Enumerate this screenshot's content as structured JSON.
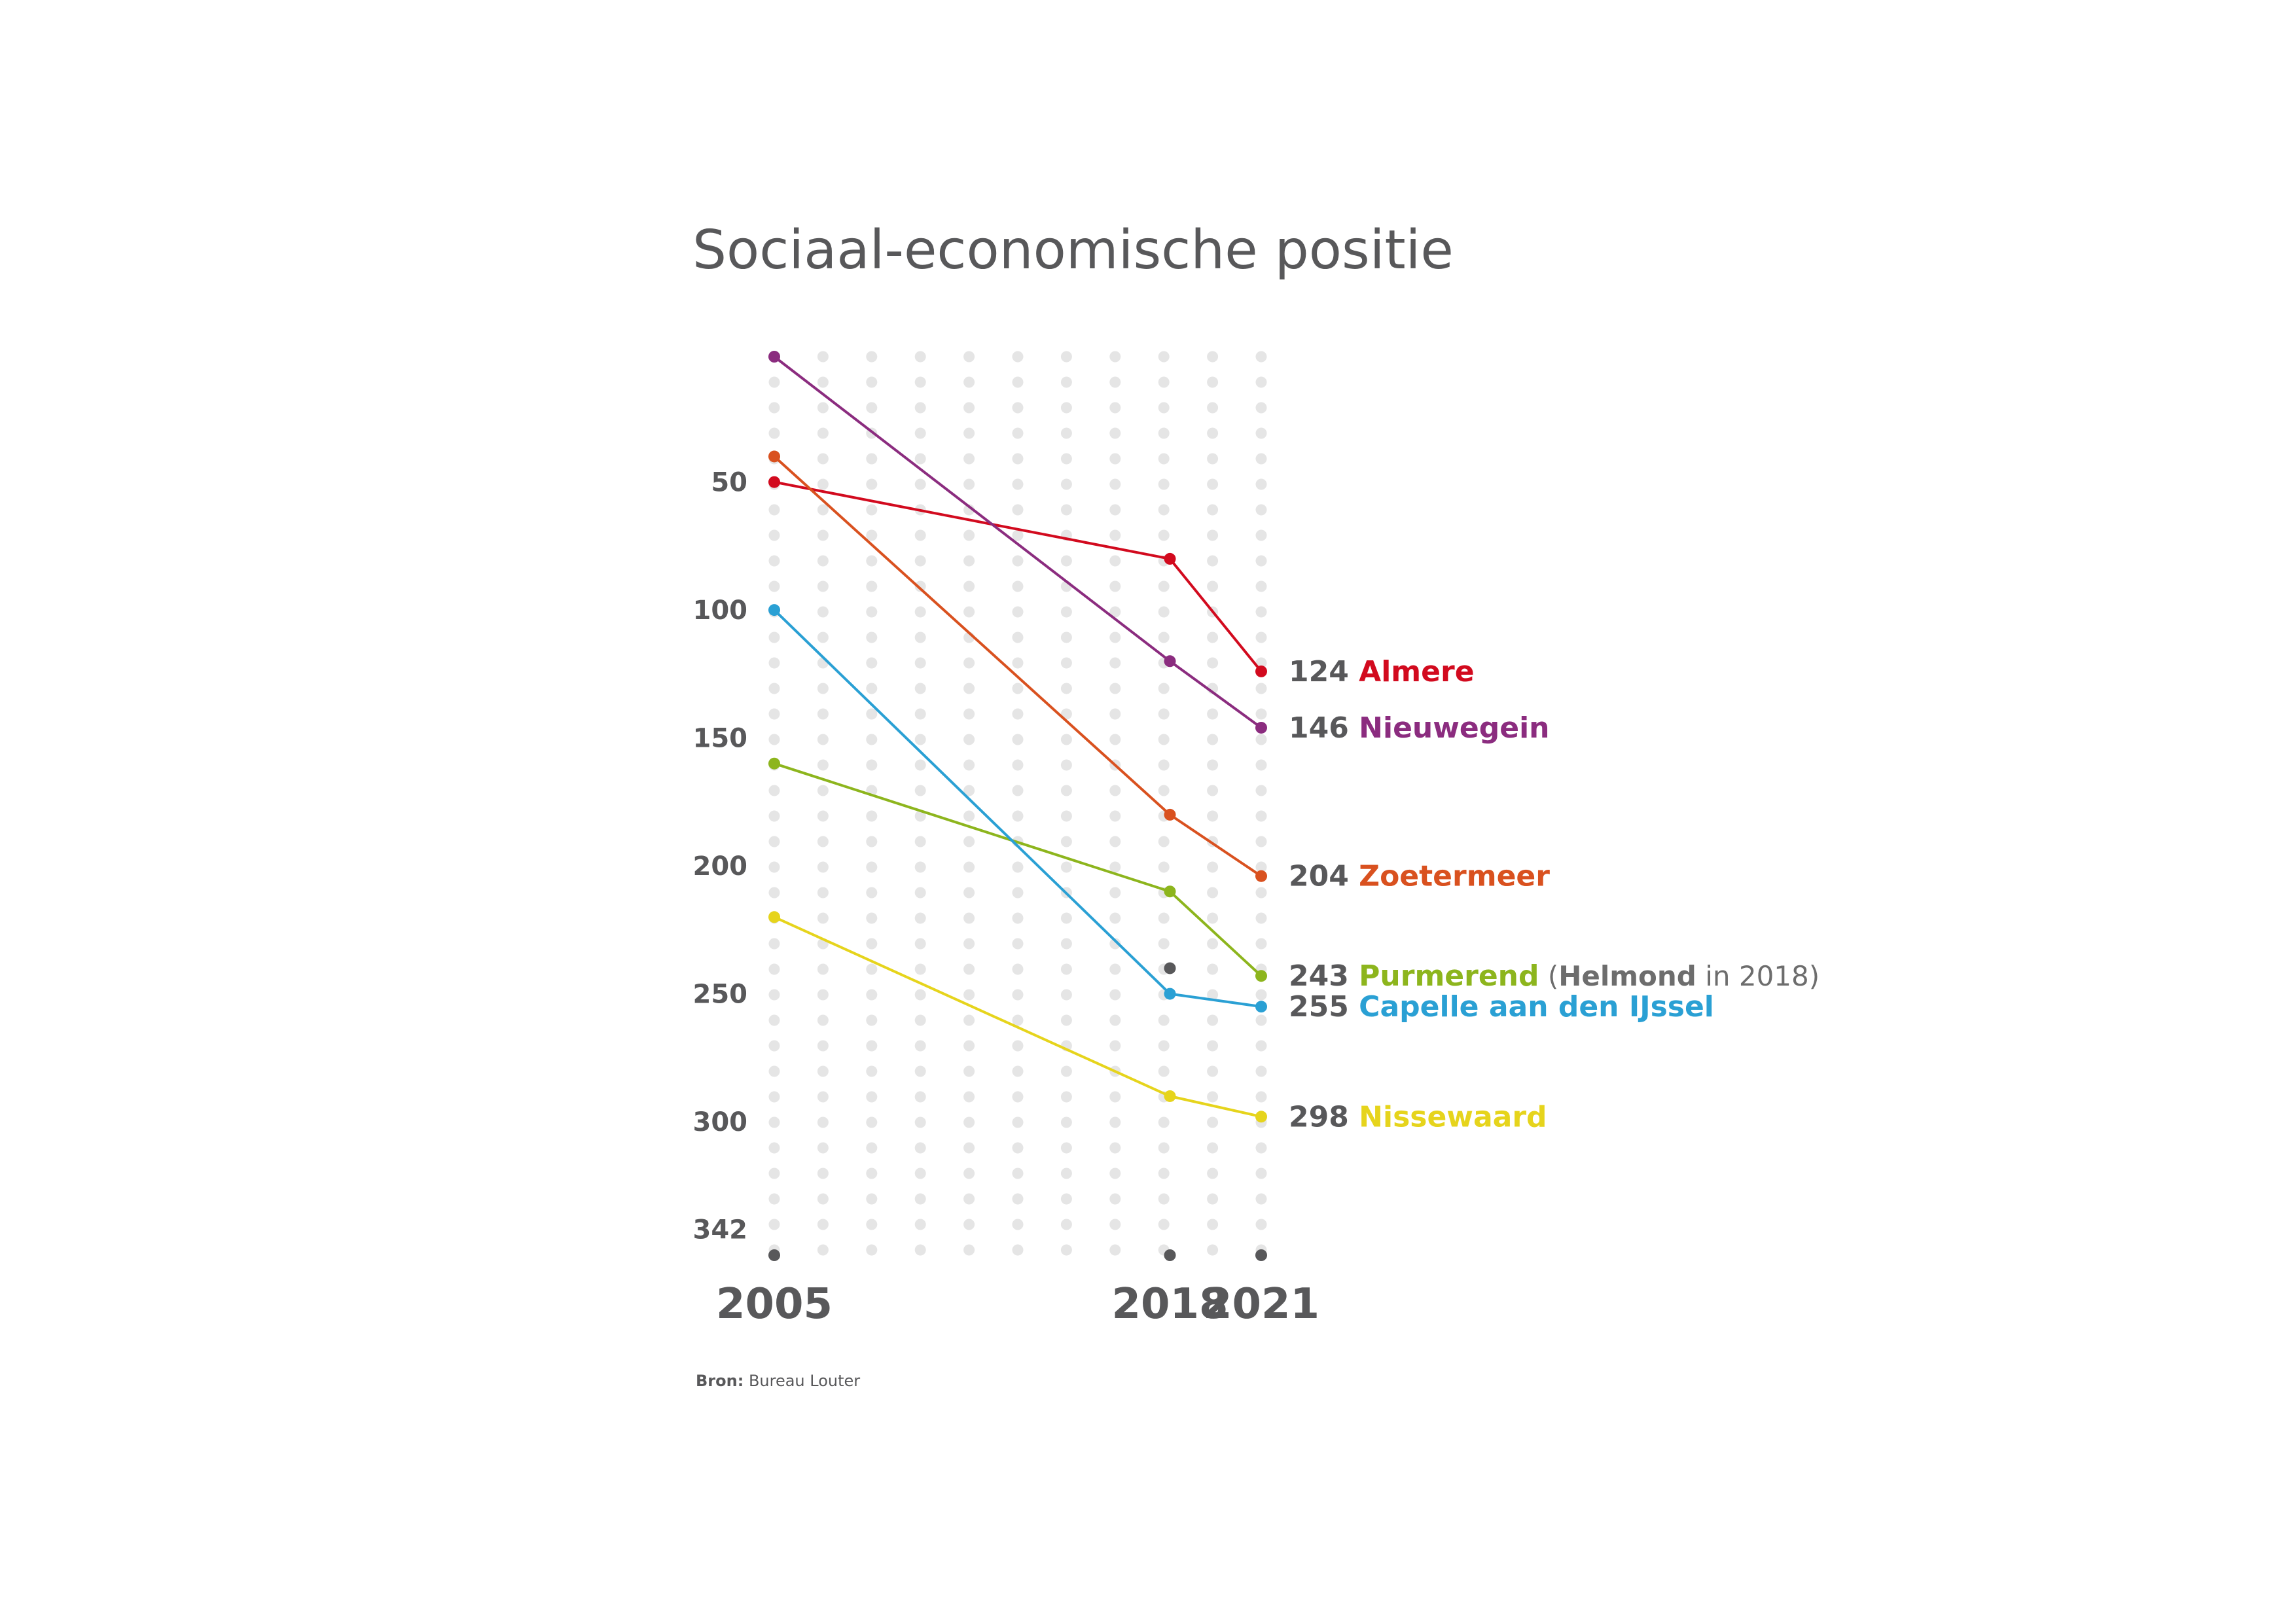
{
  "chart_data": {
    "type": "line",
    "title": "Sociaal-economische positie",
    "y_inverted": true,
    "ylim": [
      1,
      342
    ],
    "y_ticks": [
      "50",
      "100",
      "150",
      "200",
      "250",
      "300",
      "342"
    ],
    "x": [
      2005,
      2018,
      2021
    ],
    "x_ticks": [
      "2005",
      "2018",
      "2021"
    ],
    "grid": "dotted",
    "series": [
      {
        "name": "Almere",
        "color": "#d20a1e",
        "values": [
          50,
          80,
          124
        ],
        "end_value": "124"
      },
      {
        "name": "Nieuwegein",
        "color": "#8b2c7f",
        "values": [
          1,
          120,
          146
        ],
        "end_value": "146"
      },
      {
        "name": "Zoetermeer",
        "color": "#d9511f",
        "values": [
          40,
          180,
          204
        ],
        "end_value": "204"
      },
      {
        "name": "Purmerend",
        "color": "#8db51d",
        "values": [
          160,
          210,
          243
        ],
        "end_value": "243"
      },
      {
        "name": "Capelle aan den IJssel",
        "color": "#2aa0d4",
        "values": [
          100,
          250,
          255
        ],
        "end_value": "255"
      },
      {
        "name": "Nissewaard",
        "color": "#e6d41c",
        "values": [
          220,
          290,
          298
        ],
        "end_value": "298"
      }
    ],
    "extra_points": [
      {
        "label": "Helmond",
        "x": 2018,
        "y": 240,
        "color": "#58585a"
      }
    ],
    "note": {
      "open": "(",
      "name": "Helmond",
      "rest": " in 2018)"
    },
    "source": {
      "label": "Bron:",
      "text": " Bureau Louter"
    }
  }
}
